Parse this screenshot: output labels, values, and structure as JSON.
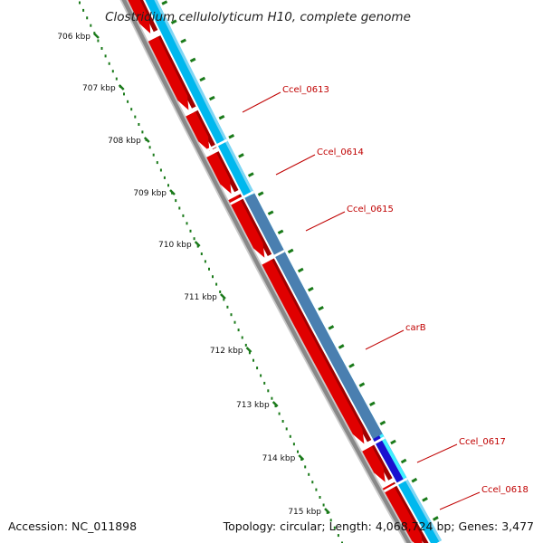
{
  "title": "Clostridium cellulolyticum H10, complete genome",
  "footer": {
    "accession": "Accession: NC_011898",
    "summary": "Topology: circular; Length: 4,068,724 bp; Genes: 3,477"
  },
  "colors": {
    "forward_cds": "#e00000",
    "cds_light": "#00b8ee",
    "cds_dark": "#4a7fb0",
    "cds_highlight": "#1a10d0",
    "cds_cyan": "#40f0ff",
    "backbone": "#888888",
    "tick": "#1a7a1a",
    "label": "#c00000"
  },
  "ticks": [
    "706 kbp",
    "707 kbp",
    "708 kbp",
    "709 kbp",
    "710 kbp",
    "711 kbp",
    "712 kbp",
    "713 kbp",
    "714 kbp",
    "715 kbp"
  ],
  "genes": [
    {
      "name": "Ccel_0613"
    },
    {
      "name": "Ccel_0614"
    },
    {
      "name": "Ccel_0615"
    },
    {
      "name": "carB"
    },
    {
      "name": "Ccel_0617"
    },
    {
      "name": "Ccel_0618"
    }
  ]
}
